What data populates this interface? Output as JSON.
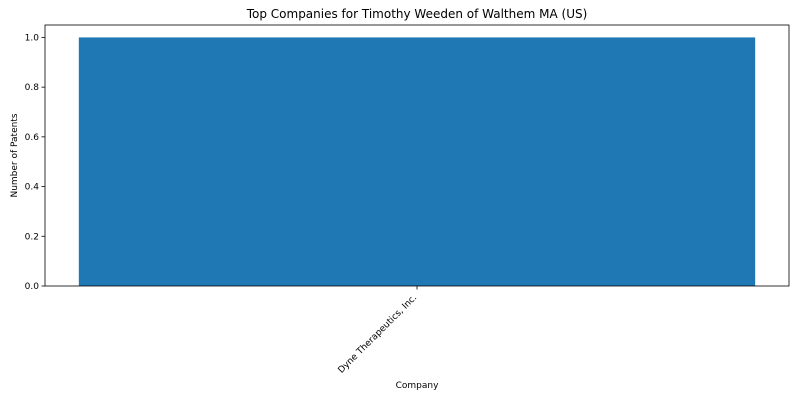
{
  "chart_data": {
    "type": "bar",
    "title": "Top Companies for Timothy Weeden of Walthem MA (US)",
    "xlabel": "Company",
    "ylabel": "Number of Patents",
    "categories": [
      "Dyne Therapeutics, Inc."
    ],
    "values": [
      1
    ],
    "ylim": [
      0,
      1.05
    ],
    "yticks": [
      0.0,
      0.2,
      0.4,
      0.6,
      0.8,
      1.0
    ],
    "ytick_labels": [
      "0.0",
      "0.2",
      "0.4",
      "0.6",
      "0.8",
      "1.0"
    ],
    "grid": false,
    "bar_color": "#1f77b4"
  }
}
